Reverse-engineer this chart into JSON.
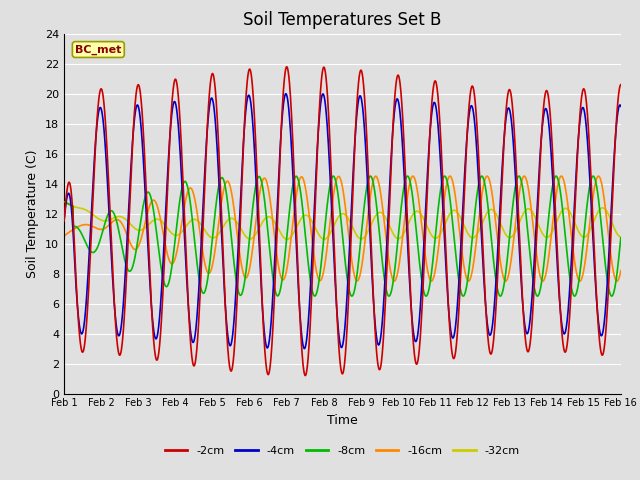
{
  "title": "Soil Temperatures Set B",
  "xlabel": "Time",
  "ylabel": "Soil Temperature (C)",
  "xlim": [
    0,
    15
  ],
  "ylim": [
    0,
    24
  ],
  "yticks": [
    0,
    2,
    4,
    6,
    8,
    10,
    12,
    14,
    16,
    18,
    20,
    22,
    24
  ],
  "xtick_labels": [
    "Feb 1",
    "Feb 2",
    "Feb 3",
    "Feb 4",
    "Feb 5",
    "Feb 6",
    "Feb 7",
    "Feb 8",
    "Feb 9",
    "Feb 10",
    "Feb 11",
    "Feb 12",
    "Feb 13",
    "Feb 14",
    "Feb 15",
    "Feb 16"
  ],
  "legend_label": "BC_met",
  "series_labels": [
    "-2cm",
    "-4cm",
    "-8cm",
    "-16cm",
    "-32cm"
  ],
  "series_colors": [
    "#cc0000",
    "#0000cc",
    "#00bb00",
    "#ff8800",
    "#cccc00"
  ],
  "background_color": "#e0e0e0",
  "plot_bg_color": "#e0e0e0",
  "grid_color": "#ffffff",
  "title_fontsize": 12,
  "label_fontsize": 9,
  "tick_fontsize": 8
}
